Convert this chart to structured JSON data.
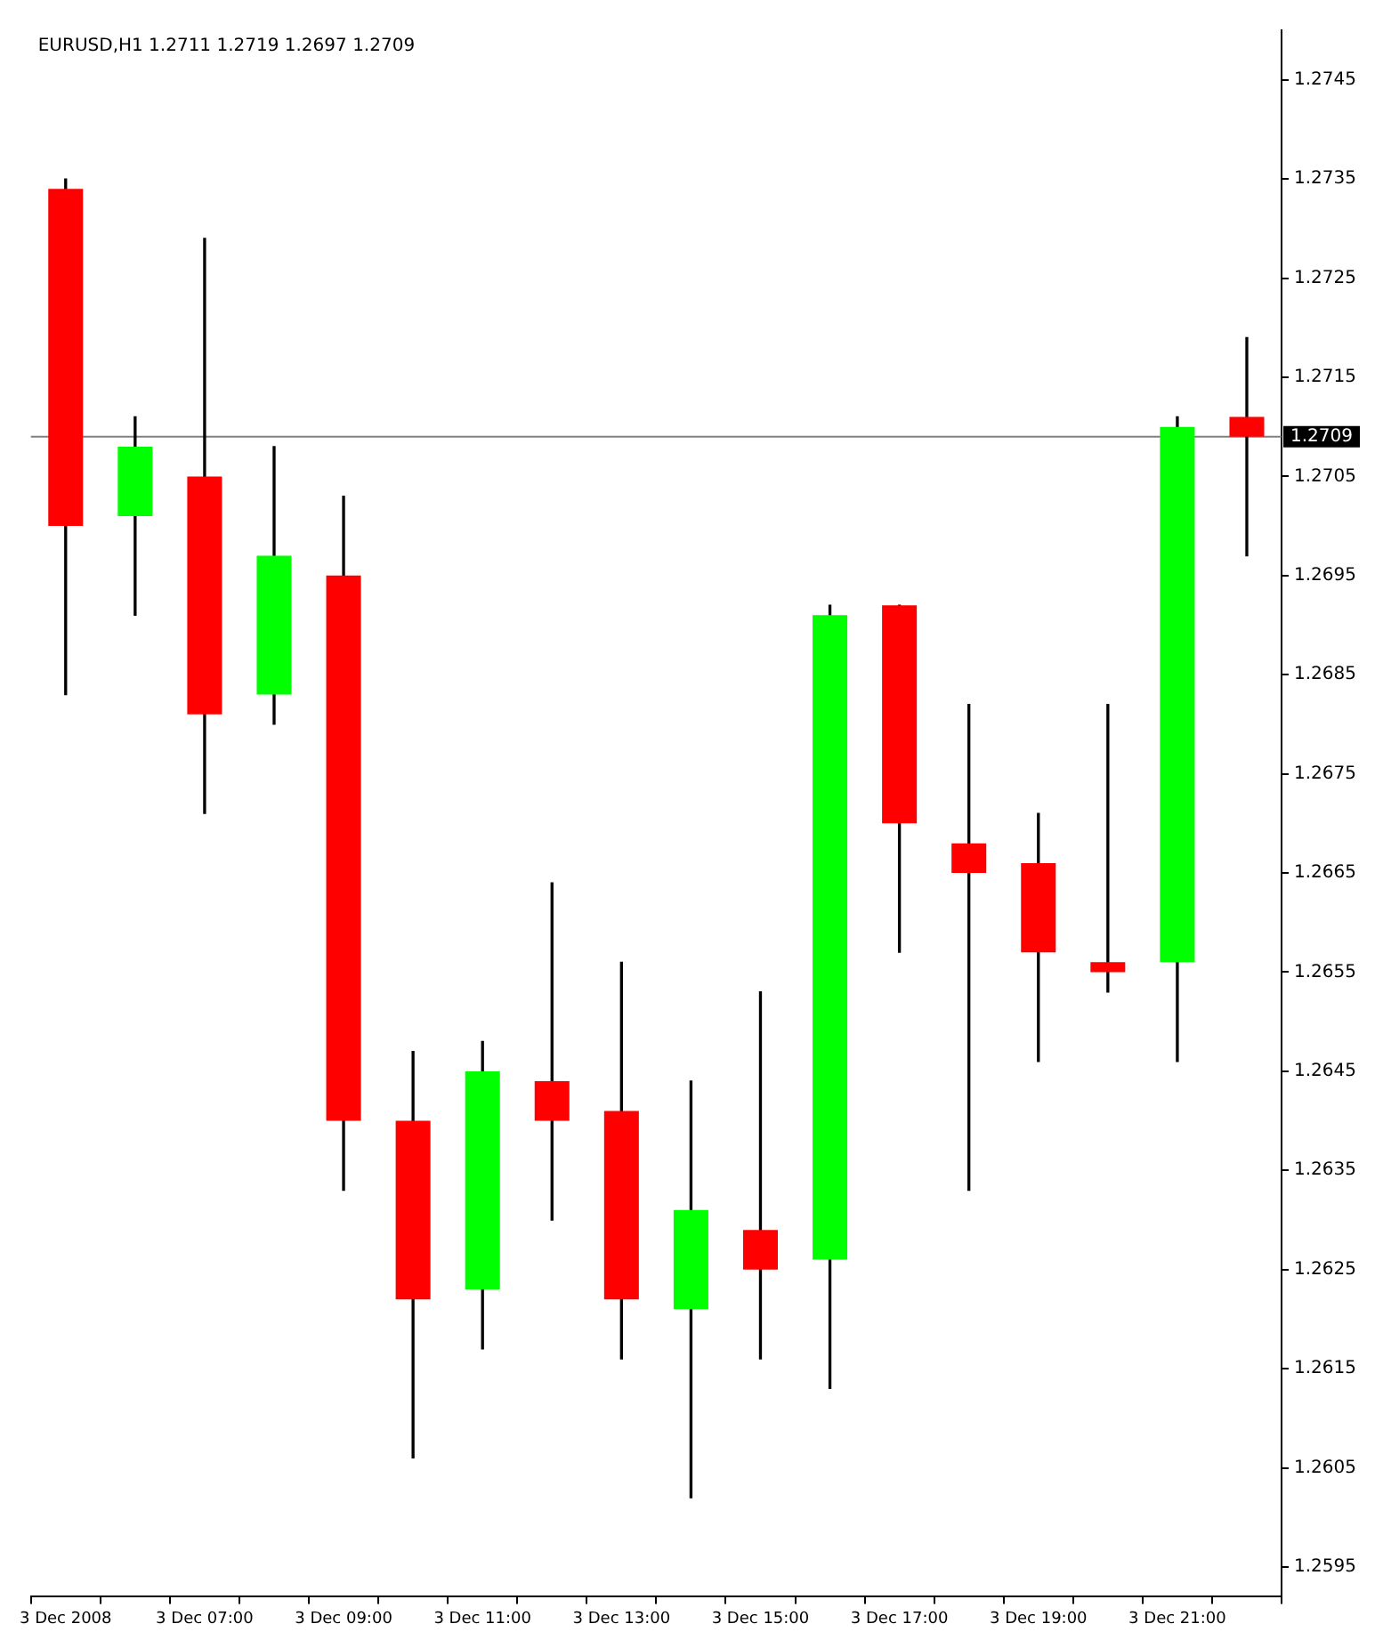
{
  "chart_data": {
    "type": "candlestick",
    "title": "EURUSD,H1 1.2711 1.2719 1.2697 1.2709",
    "categories": [
      "3 Dec 2008",
      null,
      "3 Dec 07:00",
      null,
      "3 Dec 09:00",
      null,
      "3 Dec 11:00",
      null,
      "3 Dec 13:00",
      null,
      "3 Dec 15:00",
      null,
      "3 Dec 17:00",
      null,
      "3 Dec 19:00",
      null,
      "3 Dec 21:00",
      null
    ],
    "ohlc": [
      [
        1.2734,
        1.2735,
        1.2683,
        1.27
      ],
      [
        1.2701,
        1.2711,
        1.2691,
        1.2708
      ],
      [
        1.2705,
        1.2729,
        1.2671,
        1.2681
      ],
      [
        1.2683,
        1.2708,
        1.268,
        1.2697
      ],
      [
        1.2695,
        1.2703,
        1.2633,
        1.264
      ],
      [
        1.264,
        1.2647,
        1.2606,
        1.2622
      ],
      [
        1.2623,
        1.2648,
        1.2617,
        1.2645
      ],
      [
        1.2644,
        1.2664,
        1.263,
        1.264
      ],
      [
        1.2641,
        1.2656,
        1.2616,
        1.2622
      ],
      [
        1.2621,
        1.2644,
        1.2602,
        1.2631
      ],
      [
        1.2629,
        1.2653,
        1.2616,
        1.2625
      ],
      [
        1.2626,
        1.2692,
        1.2613,
        1.2691
      ],
      [
        1.2692,
        1.2692,
        1.2657,
        1.267
      ],
      [
        1.2668,
        1.2682,
        1.2633,
        1.2665
      ],
      [
        1.2666,
        1.2671,
        1.2646,
        1.2657
      ],
      [
        1.2656,
        1.2682,
        1.2653,
        1.2655
      ],
      [
        1.2656,
        1.2711,
        1.2646,
        1.271
      ],
      [
        1.2711,
        1.2719,
        1.2697,
        1.2709
      ]
    ],
    "colors": [
      "#ff0000",
      "#00ff00",
      "#ff0000",
      "#00ff00",
      "#ff0000",
      "#ff0000",
      "#00ff00",
      "#ff0000",
      "#ff0000",
      "#00ff00",
      "#ff0000",
      "#00ff00",
      "#ff0000",
      "#ff0000",
      "#ff0000",
      "#ff0000",
      "#00ff00",
      "#ff0000"
    ],
    "ylim": [
      1.2592,
      1.275
    ],
    "yticks": [
      1.2595,
      1.2605,
      1.2615,
      1.2625,
      1.2635,
      1.2645,
      1.2655,
      1.2665,
      1.2675,
      1.2685,
      1.2695,
      1.2705,
      1.2715,
      1.2725,
      1.2735,
      1.2745
    ],
    "ref_lines": [
      {
        "axis": "y",
        "value": 1.2709,
        "label": "1.2709",
        "color": "#808080"
      }
    ],
    "grid": false,
    "legend": false
  }
}
